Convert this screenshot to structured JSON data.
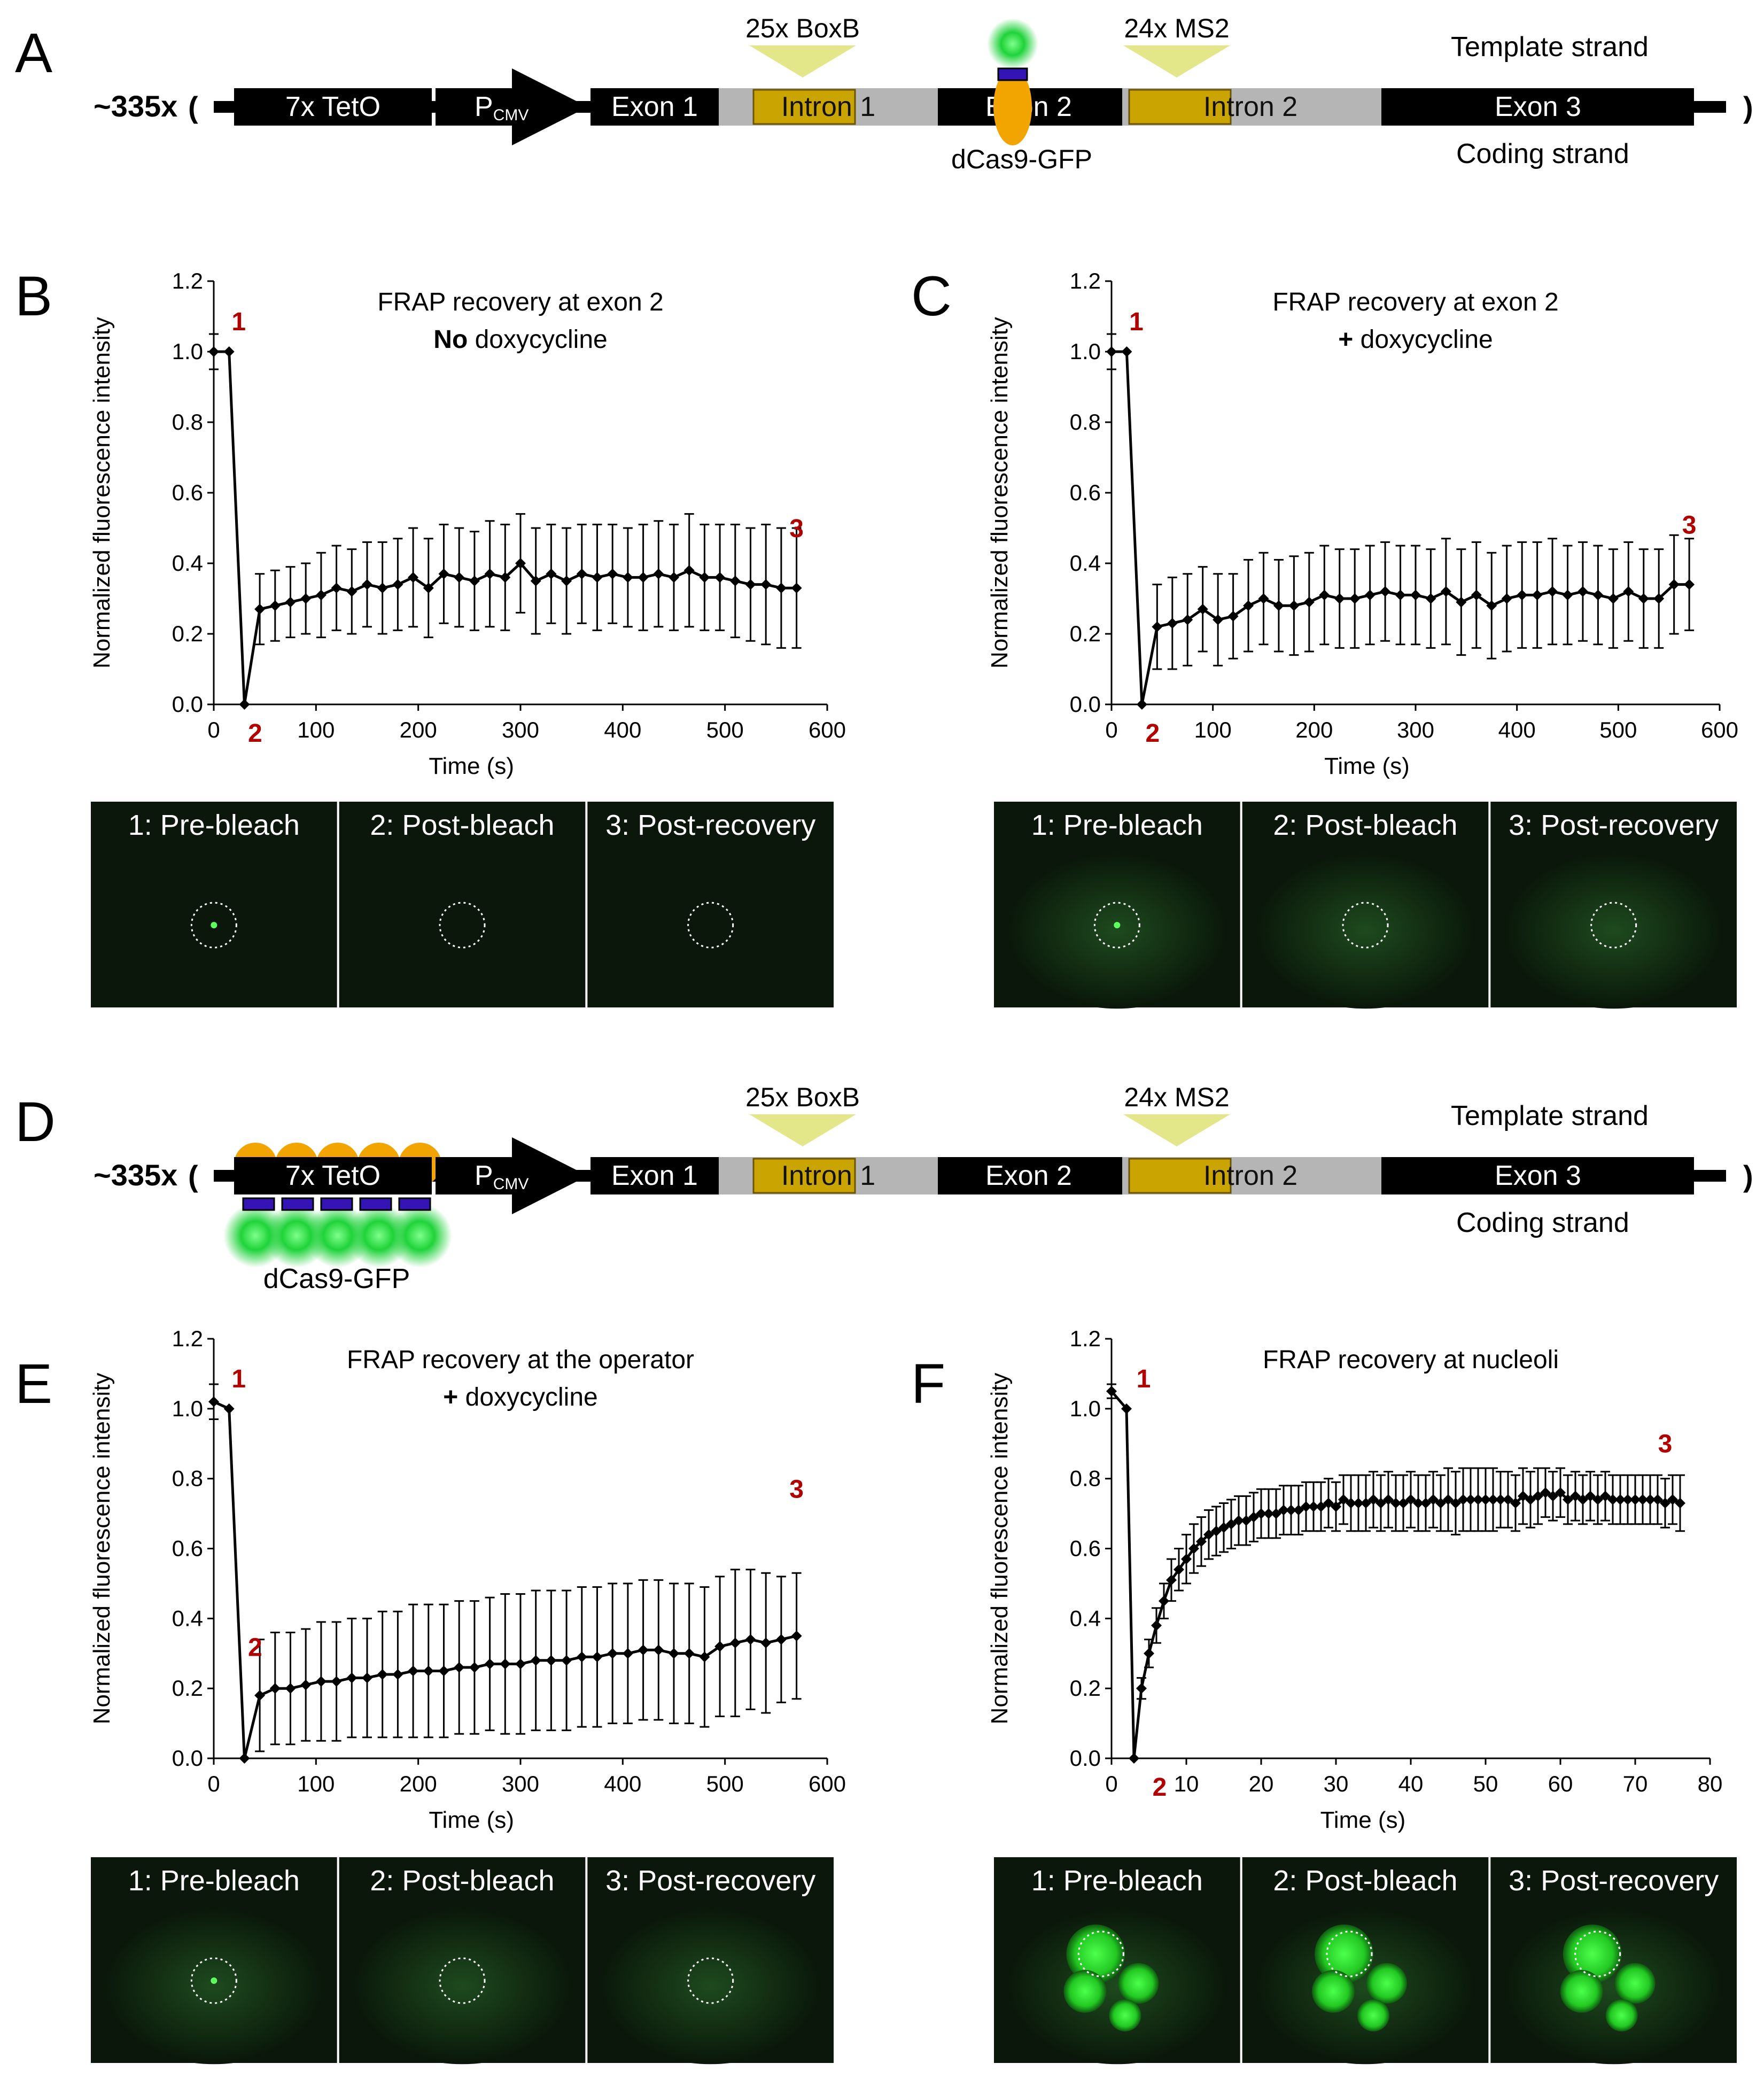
{
  "colors": {
    "black": "#000000",
    "intron": "#b5b5b5",
    "boxb": "#caa400",
    "wedge": "#e4e68a",
    "gfp": "#1fd33a",
    "dcas": "#f2a400",
    "guide": "#3414b4",
    "red_label": "#b00000",
    "micro_bg": "#0a170a"
  },
  "panel_letters": {
    "A": "A",
    "B": "B",
    "C": "C",
    "D": "D",
    "E": "E",
    "F": "F"
  },
  "construct": {
    "copies": "~335x",
    "open_paren": "(",
    "close_paren": ")",
    "tetO": "7x TetO",
    "promoter_P": "P",
    "promoter_sub": "CMV",
    "exon1": "Exon 1",
    "intron1": "Intron 1",
    "exon2": "Exon 2",
    "intron2": "Intron 2",
    "exon3": "Exon 3",
    "boxb_label": "25x BoxB",
    "ms2_label": "24x MS2",
    "template_strand": "Template strand",
    "coding_strand": "Coding strand",
    "dcas_label": "dCas9-GFP"
  },
  "icons": {
    "promoter": "promoter-arrow-icon",
    "stem_loop": "stem-loop-wedge-icon",
    "dcas9": "dcas9-gfp-icon",
    "roi": "bleach-roi-circle-icon"
  },
  "micro_labels": [
    "1: Pre-bleach",
    "2: Post-bleach",
    "3: Post-recovery"
  ],
  "axis": {
    "ylabel": "Normalized  fluorescence  intensity",
    "xlabel": "Time (s)"
  },
  "chart_data": [
    {
      "id": "B",
      "type": "line",
      "title": [
        "FRAP recovery at exon 2"
      ],
      "title_line2_bold": "No",
      "title_line2_rest": " doxycycline",
      "xlabel": "Time (s)",
      "ylabel": "Normalized  fluorescence  intensity",
      "xlim": [
        0,
        600
      ],
      "ylim": [
        0,
        1.2
      ],
      "xticks": [
        "0",
        "100",
        "200",
        "300",
        "400",
        "500",
        "600"
      ],
      "yticks": [
        "0.0",
        "0.2",
        "0.4",
        "0.6",
        "0.8",
        "1.0",
        "1.2"
      ],
      "x": [
        0,
        15,
        30,
        45,
        60,
        75,
        90,
        105,
        120,
        135,
        150,
        165,
        180,
        195,
        210,
        225,
        240,
        255,
        270,
        285,
        300,
        315,
        330,
        345,
        360,
        375,
        390,
        405,
        420,
        435,
        450,
        465,
        480,
        495,
        510,
        525,
        540,
        555,
        570
      ],
      "y": [
        1.0,
        1.0,
        0.0,
        0.27,
        0.28,
        0.29,
        0.3,
        0.31,
        0.33,
        0.32,
        0.34,
        0.33,
        0.34,
        0.36,
        0.33,
        0.37,
        0.36,
        0.35,
        0.37,
        0.36,
        0.4,
        0.35,
        0.37,
        0.35,
        0.37,
        0.36,
        0.37,
        0.36,
        0.36,
        0.37,
        0.36,
        0.38,
        0.36,
        0.36,
        0.35,
        0.34,
        0.34,
        0.33,
        0.33
      ],
      "err": [
        0.05,
        0.0,
        0.0,
        0.1,
        0.1,
        0.1,
        0.1,
        0.12,
        0.12,
        0.12,
        0.12,
        0.13,
        0.13,
        0.14,
        0.14,
        0.14,
        0.14,
        0.14,
        0.15,
        0.15,
        0.14,
        0.15,
        0.14,
        0.15,
        0.14,
        0.15,
        0.14,
        0.14,
        0.15,
        0.15,
        0.15,
        0.16,
        0.15,
        0.15,
        0.16,
        0.16,
        0.17,
        0.17,
        0.17
      ],
      "point_labels": [
        {
          "text": "1",
          "x": 15,
          "y": 1.0
        },
        {
          "text": "2",
          "x": 30,
          "y": 0.0
        },
        {
          "text": "3",
          "x": 570,
          "y": 0.33
        }
      ]
    },
    {
      "id": "C",
      "type": "line",
      "title": [
        "FRAP recovery at exon 2"
      ],
      "title_line2_bold": "+",
      "title_line2_rest": " doxycycline",
      "xlabel": "Time (s)",
      "ylabel": "Normalized  fluorescence  intensity",
      "xlim": [
        0,
        600
      ],
      "ylim": [
        0,
        1.2
      ],
      "xticks": [
        "0",
        "100",
        "200",
        "300",
        "400",
        "500",
        "600"
      ],
      "yticks": [
        "0.0",
        "0.2",
        "0.4",
        "0.6",
        "0.8",
        "1.0",
        "1.2"
      ],
      "x": [
        0,
        15,
        30,
        45,
        60,
        75,
        90,
        105,
        120,
        135,
        150,
        165,
        180,
        195,
        210,
        225,
        240,
        255,
        270,
        285,
        300,
        315,
        330,
        345,
        360,
        375,
        390,
        405,
        420,
        435,
        450,
        465,
        480,
        495,
        510,
        525,
        540,
        555,
        570
      ],
      "y": [
        1.0,
        1.0,
        0.0,
        0.22,
        0.23,
        0.24,
        0.27,
        0.24,
        0.25,
        0.28,
        0.3,
        0.28,
        0.28,
        0.29,
        0.31,
        0.3,
        0.3,
        0.31,
        0.32,
        0.31,
        0.31,
        0.3,
        0.32,
        0.29,
        0.31,
        0.28,
        0.3,
        0.31,
        0.31,
        0.32,
        0.31,
        0.32,
        0.31,
        0.3,
        0.32,
        0.3,
        0.3,
        0.34,
        0.34
      ],
      "err": [
        0.05,
        0.0,
        0.0,
        0.12,
        0.13,
        0.13,
        0.12,
        0.13,
        0.12,
        0.13,
        0.13,
        0.13,
        0.14,
        0.14,
        0.14,
        0.14,
        0.14,
        0.14,
        0.14,
        0.14,
        0.14,
        0.14,
        0.15,
        0.15,
        0.15,
        0.15,
        0.15,
        0.15,
        0.15,
        0.15,
        0.14,
        0.14,
        0.14,
        0.14,
        0.14,
        0.14,
        0.14,
        0.14,
        0.13
      ],
      "point_labels": [
        {
          "text": "1",
          "x": 15,
          "y": 1.0
        },
        {
          "text": "2",
          "x": 30,
          "y": 0.0
        },
        {
          "text": "3",
          "x": 570,
          "y": 0.34
        }
      ]
    },
    {
      "id": "E",
      "type": "line",
      "title": [
        "FRAP recovery at the operator"
      ],
      "title_line2_bold": "+",
      "title_line2_rest": " doxycycline",
      "xlabel": "Time (s)",
      "ylabel": "Normalized  fluorescence  intensity",
      "xlim": [
        0,
        600
      ],
      "ylim": [
        0,
        1.2
      ],
      "xticks": [
        "0",
        "100",
        "200",
        "300",
        "400",
        "500",
        "600"
      ],
      "yticks": [
        "0.0",
        "0.2",
        "0.4",
        "0.6",
        "0.8",
        "1.0",
        "1.2"
      ],
      "x": [
        0,
        15,
        30,
        45,
        60,
        75,
        90,
        105,
        120,
        135,
        150,
        165,
        180,
        195,
        210,
        225,
        240,
        255,
        270,
        285,
        300,
        315,
        330,
        345,
        360,
        375,
        390,
        405,
        420,
        435,
        450,
        465,
        480,
        495,
        510,
        525,
        540,
        555,
        570
      ],
      "y": [
        1.02,
        1.0,
        0.0,
        0.18,
        0.2,
        0.2,
        0.21,
        0.22,
        0.22,
        0.23,
        0.23,
        0.24,
        0.24,
        0.25,
        0.25,
        0.25,
        0.26,
        0.26,
        0.27,
        0.27,
        0.27,
        0.28,
        0.28,
        0.28,
        0.29,
        0.29,
        0.3,
        0.3,
        0.31,
        0.31,
        0.3,
        0.3,
        0.29,
        0.32,
        0.33,
        0.34,
        0.33,
        0.34,
        0.35
      ],
      "err": [
        0.05,
        0.0,
        0.0,
        0.16,
        0.16,
        0.16,
        0.16,
        0.17,
        0.17,
        0.17,
        0.17,
        0.18,
        0.18,
        0.19,
        0.19,
        0.19,
        0.19,
        0.19,
        0.19,
        0.2,
        0.2,
        0.2,
        0.2,
        0.2,
        0.2,
        0.2,
        0.2,
        0.2,
        0.2,
        0.2,
        0.2,
        0.2,
        0.2,
        0.2,
        0.21,
        0.2,
        0.2,
        0.18,
        0.18
      ],
      "point_labels": [
        {
          "text": "1",
          "x": 15,
          "y": 1.0
        },
        {
          "text": "2",
          "x": 30,
          "y": 0.4
        },
        {
          "text": "3",
          "x": 570,
          "y": 0.6
        }
      ]
    },
    {
      "id": "F",
      "type": "line",
      "title": [
        "FRAP recovery at nucleoli"
      ],
      "title_line2_bold": "",
      "title_line2_rest": "",
      "xlabel": "Time (s)",
      "ylabel": "Normalized  fluorescence  intensity",
      "xlim": [
        0,
        80
      ],
      "ylim": [
        0,
        1.2
      ],
      "xticks": [
        "0",
        "10",
        "20",
        "30",
        "40",
        "50",
        "60",
        "70",
        "80"
      ],
      "yticks": [
        "0.0",
        "0.2",
        "0.4",
        "0.6",
        "0.8",
        "1.0",
        "1.2"
      ],
      "x": [
        0,
        2,
        3,
        4,
        5,
        6,
        7,
        8,
        9,
        10,
        11,
        12,
        13,
        14,
        15,
        16,
        17,
        18,
        19,
        20,
        21,
        22,
        23,
        24,
        25,
        26,
        27,
        28,
        29,
        30,
        31,
        32,
        33,
        34,
        35,
        36,
        37,
        38,
        39,
        40,
        41,
        42,
        43,
        44,
        45,
        46,
        47,
        48,
        49,
        50,
        51,
        52,
        53,
        54,
        55,
        56,
        57,
        58,
        59,
        60,
        61,
        62,
        63,
        64,
        65,
        66,
        67,
        68,
        69,
        70,
        71,
        72,
        73,
        74,
        75,
        76
      ],
      "y": [
        1.05,
        1.0,
        0.0,
        0.2,
        0.3,
        0.38,
        0.45,
        0.51,
        0.54,
        0.57,
        0.6,
        0.62,
        0.64,
        0.65,
        0.66,
        0.67,
        0.68,
        0.68,
        0.69,
        0.7,
        0.7,
        0.7,
        0.71,
        0.71,
        0.71,
        0.72,
        0.72,
        0.72,
        0.73,
        0.72,
        0.74,
        0.73,
        0.73,
        0.73,
        0.74,
        0.73,
        0.74,
        0.73,
        0.73,
        0.74,
        0.73,
        0.73,
        0.74,
        0.73,
        0.74,
        0.73,
        0.74,
        0.74,
        0.74,
        0.74,
        0.74,
        0.74,
        0.74,
        0.73,
        0.75,
        0.74,
        0.75,
        0.76,
        0.75,
        0.76,
        0.74,
        0.75,
        0.74,
        0.75,
        0.74,
        0.75,
        0.74,
        0.74,
        0.74,
        0.74,
        0.74,
        0.74,
        0.74,
        0.73,
        0.74,
        0.73
      ],
      "err": [
        0.02,
        0.0,
        0.0,
        0.03,
        0.04,
        0.05,
        0.05,
        0.06,
        0.06,
        0.07,
        0.07,
        0.07,
        0.07,
        0.07,
        0.07,
        0.07,
        0.07,
        0.07,
        0.07,
        0.07,
        0.07,
        0.07,
        0.07,
        0.07,
        0.07,
        0.07,
        0.07,
        0.07,
        0.07,
        0.07,
        0.07,
        0.08,
        0.08,
        0.08,
        0.08,
        0.08,
        0.08,
        0.08,
        0.08,
        0.08,
        0.08,
        0.08,
        0.08,
        0.08,
        0.09,
        0.09,
        0.09,
        0.09,
        0.09,
        0.09,
        0.09,
        0.08,
        0.08,
        0.08,
        0.08,
        0.08,
        0.08,
        0.07,
        0.07,
        0.07,
        0.07,
        0.07,
        0.07,
        0.07,
        0.07,
        0.07,
        0.07,
        0.07,
        0.07,
        0.07,
        0.07,
        0.07,
        0.07,
        0.07,
        0.07,
        0.08
      ],
      "point_labels": [
        {
          "text": "1",
          "x": 3,
          "y": 1.0
        },
        {
          "text": "2",
          "x": 5,
          "y": 0.0
        },
        {
          "text": "3",
          "x": 74,
          "y": 0.73
        }
      ]
    }
  ]
}
